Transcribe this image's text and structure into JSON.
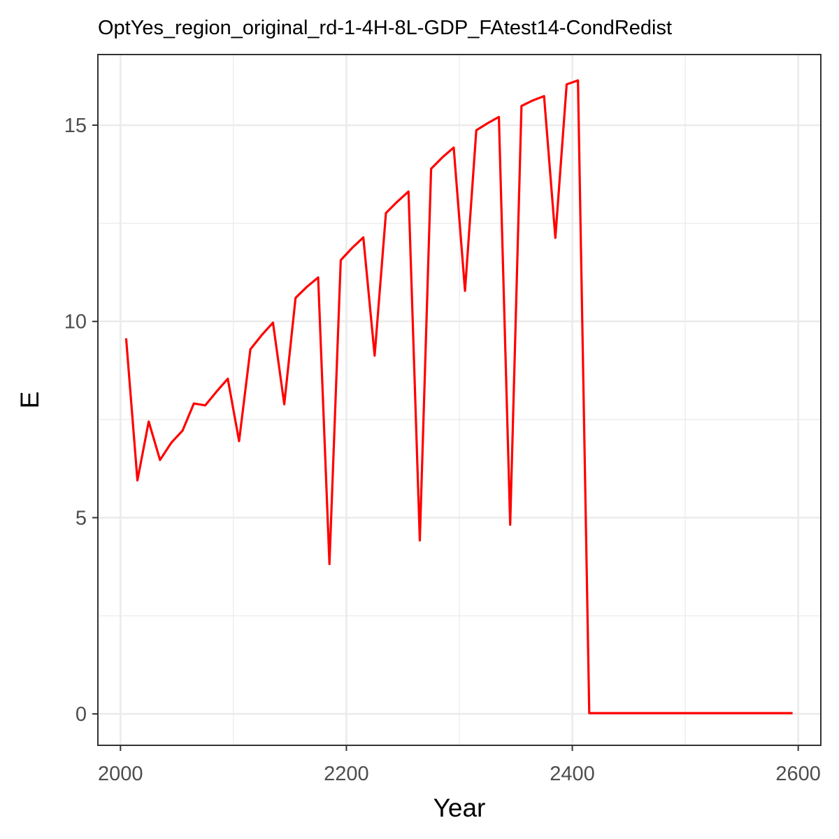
{
  "chart_data": {
    "type": "line",
    "title": "OptYes_region_original_rd-1-4H-8L-GDP_FAtest14-CondRedist",
    "xlabel": "Year",
    "ylabel": "E",
    "xlim": [
      1980,
      2620
    ],
    "ylim": [
      -0.8,
      16.8
    ],
    "x_ticks": [
      2000,
      2200,
      2400,
      2600
    ],
    "x_minor_ticks": [
      2100,
      2300,
      2500
    ],
    "y_ticks": [
      0,
      5,
      10,
      15
    ],
    "y_minor_ticks": [
      2.5,
      7.5,
      12.5
    ],
    "x_tick_labels": [
      "2000",
      "2200",
      "2400",
      "2600"
    ],
    "y_tick_labels": [
      "0",
      "5",
      "10",
      "15"
    ],
    "grid": true,
    "colors": {
      "line": "#ff0000",
      "grid": "#ebebeb",
      "panel_border": "#333333",
      "tick_label": "#4d4d4d"
    },
    "series": [
      {
        "x": [
          2005,
          2015,
          2025,
          2035,
          2045,
          2055,
          2065,
          2075,
          2085,
          2095,
          2105,
          2115,
          2125,
          2135,
          2145,
          2155,
          2165,
          2175,
          2185,
          2195,
          2205,
          2215,
          2225,
          2235,
          2245,
          2255,
          2265,
          2275,
          2285,
          2295,
          2305,
          2315,
          2325,
          2335,
          2345,
          2355,
          2365,
          2375,
          2385,
          2395,
          2405,
          2415,
          2425,
          2435,
          2445,
          2455,
          2465,
          2475,
          2485,
          2495,
          2505,
          2515,
          2525,
          2535,
          2545,
          2555,
          2565,
          2575,
          2585,
          2595
        ],
        "y": [
          9.57,
          5.95,
          7.45,
          6.47,
          6.91,
          7.22,
          7.91,
          7.86,
          8.21,
          8.54,
          6.95,
          9.29,
          9.65,
          9.97,
          7.89,
          10.6,
          10.88,
          11.12,
          3.82,
          11.56,
          11.87,
          12.14,
          9.13,
          12.76,
          13.05,
          13.31,
          4.42,
          13.89,
          14.18,
          14.43,
          10.78,
          14.87,
          15.05,
          15.21,
          4.82,
          15.49,
          15.63,
          15.74,
          12.13,
          16.04,
          16.14,
          0.02,
          0.02,
          0.02,
          0.02,
          0.02,
          0.02,
          0.02,
          0.02,
          0.02,
          0.02,
          0.02,
          0.02,
          0.02,
          0.02,
          0.02,
          0.02,
          0.02,
          0.02,
          0.02
        ]
      }
    ]
  }
}
